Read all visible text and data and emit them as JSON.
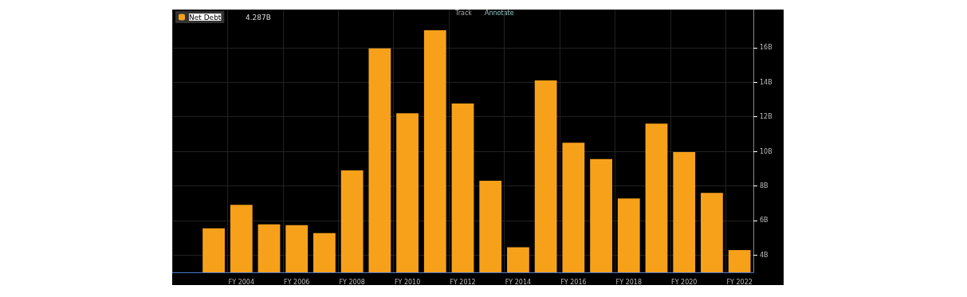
{
  "chart_data": {
    "type": "bar",
    "categories": [
      null,
      null,
      "FY 2004",
      null,
      "FY 2006",
      null,
      "FY 2008",
      null,
      "FY 2010",
      null,
      "FY 2012",
      null,
      "FY 2014",
      null,
      "FY 2016",
      null,
      "FY 2018",
      null,
      "FY 2020",
      null,
      "FY 2022"
    ],
    "series": [
      {
        "name": "Net Debt",
        "color": "#f7a11a",
        "values": [
          null,
          5.55,
          6.9,
          5.77,
          5.73,
          5.27,
          8.9,
          15.95,
          12.2,
          17.0,
          12.77,
          8.3,
          4.45,
          14.1,
          10.5,
          9.55,
          7.27,
          11.6,
          9.95,
          7.6,
          4.287
        ]
      }
    ],
    "ylim": [
      3,
      18.2
    ],
    "yticks": [
      {
        "value": 4,
        "label": "4B"
      },
      {
        "value": 6,
        "label": "6B"
      },
      {
        "value": 8,
        "label": "8B"
      },
      {
        "value": 10,
        "label": "10B"
      },
      {
        "value": 12,
        "label": "12B"
      },
      {
        "value": 14,
        "label": "14B"
      },
      {
        "value": 16,
        "label": "16B"
      }
    ],
    "grid": true,
    "legend": "top left",
    "annotations": [
      "4.287B",
      "Track",
      "Annotate"
    ]
  }
}
